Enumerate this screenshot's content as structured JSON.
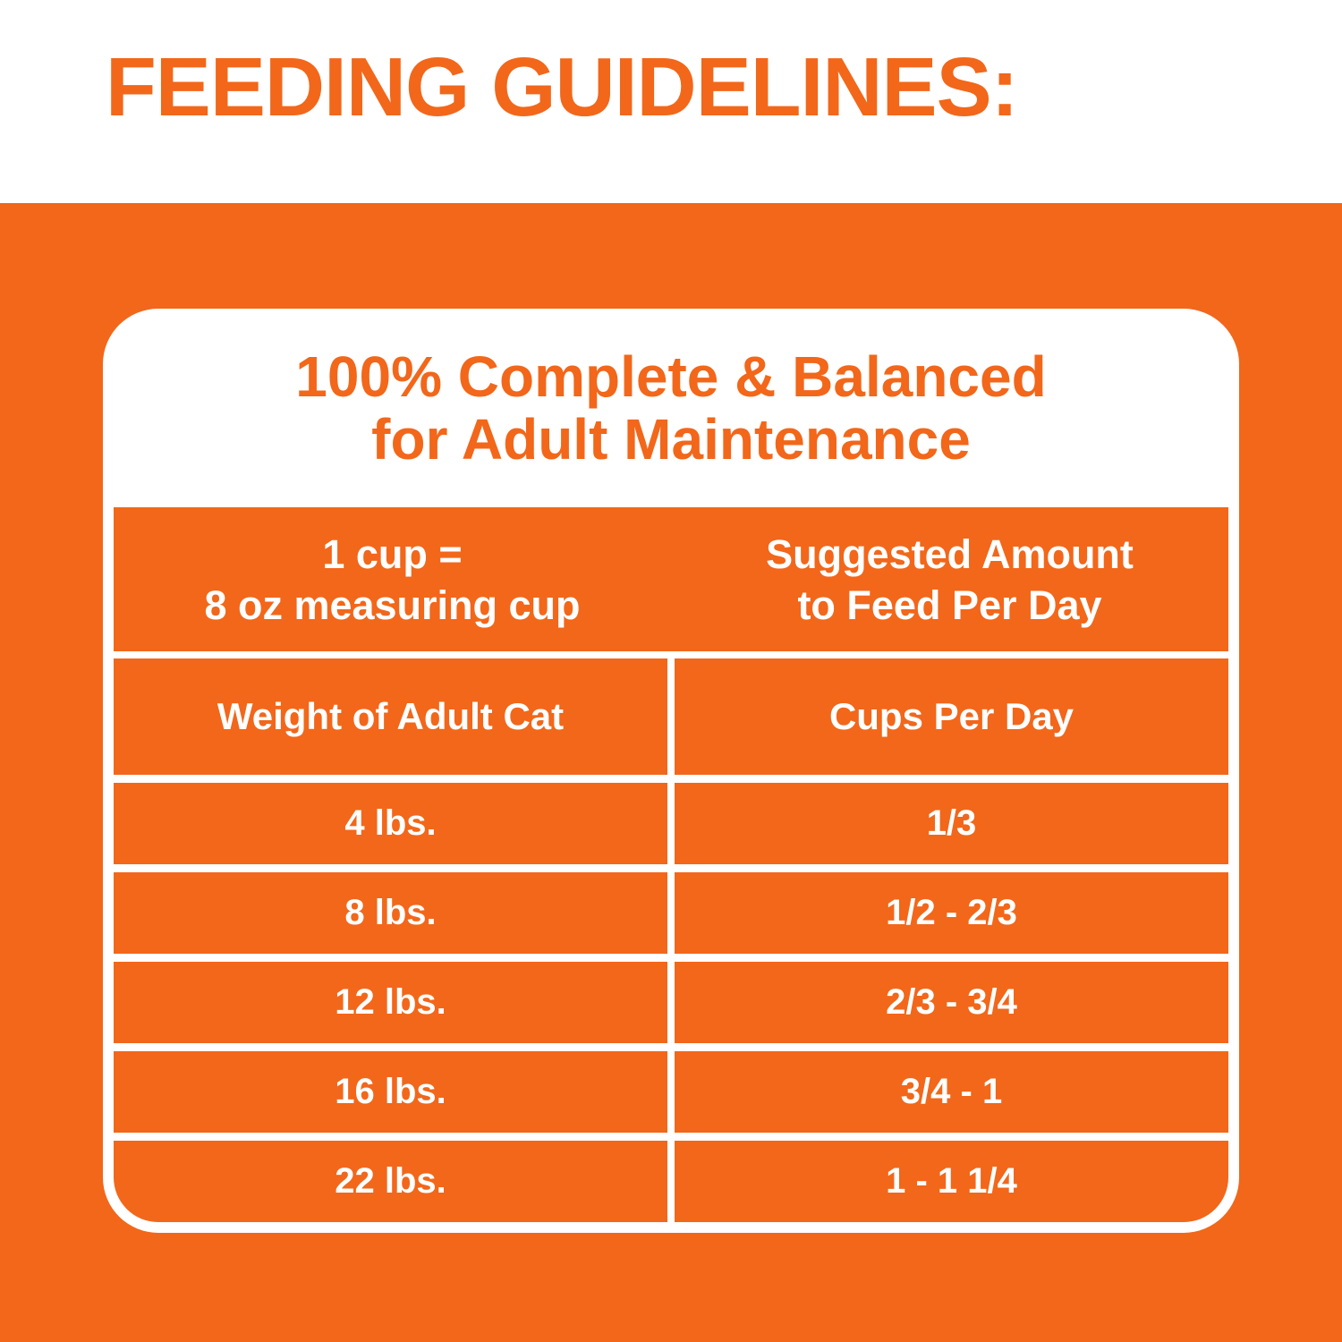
{
  "colors": {
    "brand_orange": "#F2671A",
    "white": "#FFFFFF"
  },
  "page_header": {
    "title": "FEEDING GUIDELINES:"
  },
  "card": {
    "title": {
      "line1": "100% Complete & Balanced",
      "line2": "for Adult Maintenance"
    },
    "measure_header": {
      "left": {
        "line1": "1 cup =",
        "line2": "8 oz measuring cup"
      },
      "right": {
        "line1": "Suggested Amount",
        "line2": "to Feed Per Day"
      }
    },
    "column_headers": {
      "left": "Weight of Adult Cat",
      "right": "Cups Per Day"
    },
    "rows": [
      {
        "weight": "4 lbs.",
        "cups": "1/3"
      },
      {
        "weight": "8 lbs.",
        "cups": "1/2 - 2/3"
      },
      {
        "weight": "12 lbs.",
        "cups": "2/3 - 3/4"
      },
      {
        "weight": "16 lbs.",
        "cups": "3/4 - 1"
      },
      {
        "weight": "22 lbs.",
        "cups": "1 - 1 1/4"
      }
    ]
  },
  "chart_data": {
    "type": "table",
    "title": "100% Complete & Balanced for Adult Maintenance",
    "notes": [
      "1 cup = 8 oz measuring cup",
      "Suggested Amount to Feed Per Day"
    ],
    "columns": [
      "Weight of Adult Cat",
      "Cups Per Day"
    ],
    "rows": [
      [
        "4 lbs.",
        "1/3"
      ],
      [
        "8 lbs.",
        "1/2 - 2/3"
      ],
      [
        "12 lbs.",
        "2/3 - 3/4"
      ],
      [
        "16 lbs.",
        "3/4 - 1"
      ],
      [
        "22 lbs.",
        "1 - 1 1/4"
      ]
    ]
  }
}
